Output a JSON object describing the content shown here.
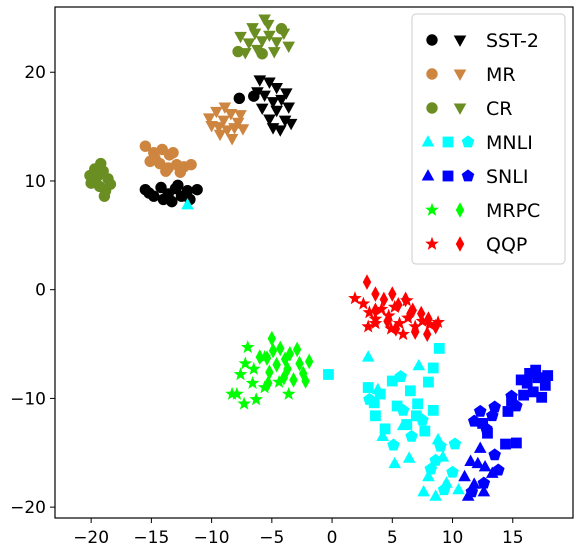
{
  "chart_data": {
    "type": "scatter",
    "title": "",
    "xlabel": "",
    "ylabel": "",
    "xlim": [
      -23,
      20
    ],
    "ylim": [
      -21,
      26
    ],
    "grid": false,
    "legend_position": "top-right",
    "xticks": [
      "−20",
      "−15",
      "−10",
      "−5",
      "0",
      "5",
      "10",
      "15"
    ],
    "xtick_values": [
      -20,
      -15,
      -10,
      -5,
      0,
      5,
      10,
      15
    ],
    "yticks": [
      "−20",
      "−10",
      "0",
      "10",
      "20"
    ],
    "ytick_values": [
      -20,
      -10,
      0,
      10,
      20
    ],
    "legend": [
      {
        "label": "SST-2",
        "color": "#000000",
        "markers": [
          "circle",
          "triangle-down"
        ]
      },
      {
        "label": "MR",
        "color": "#cd853f",
        "markers": [
          "circle",
          "triangle-down"
        ]
      },
      {
        "label": "CR",
        "color": "#6b8e23",
        "markers": [
          "circle",
          "triangle-down"
        ]
      },
      {
        "label": "MNLI",
        "color": "#00ffff",
        "markers": [
          "triangle-up",
          "square",
          "pentagon"
        ]
      },
      {
        "label": "SNLI",
        "color": "#0000ff",
        "markers": [
          "triangle-up",
          "square",
          "pentagon"
        ]
      },
      {
        "label": "MRPC",
        "color": "#00ff00",
        "markers": [
          "star",
          "diamond"
        ]
      },
      {
        "label": "QQP",
        "color": "#ff0000",
        "markers": [
          "star",
          "diamond"
        ]
      }
    ],
    "series": [
      {
        "color": "#000000",
        "marker": "circle",
        "points": [
          [
            -15.5,
            9.2
          ],
          [
            -14.8,
            8.6
          ],
          [
            -14.2,
            9.4
          ],
          [
            -13.6,
            8.8
          ],
          [
            -13,
            9.3
          ],
          [
            -12.5,
            8.6
          ],
          [
            -12,
            9.1
          ],
          [
            -11.2,
            9.2
          ],
          [
            -15.2,
            8.9
          ],
          [
            -14,
            8.3
          ],
          [
            -13.3,
            8.1
          ],
          [
            -12.8,
            9.6
          ],
          [
            -11.8,
            8.3
          ],
          [
            -7.7,
            17.6
          ],
          [
            -6.5,
            17.8
          ]
        ]
      },
      {
        "color": "#000000",
        "marker": "triangle-down",
        "points": [
          [
            -6,
            19.3
          ],
          [
            -5.2,
            19.1
          ],
          [
            -4.6,
            18.6
          ],
          [
            -5.6,
            17.9
          ],
          [
            -4.9,
            17.3
          ],
          [
            -4.2,
            17.5
          ],
          [
            -5.8,
            16.7
          ],
          [
            -4.6,
            16.5
          ],
          [
            -3.6,
            16.8
          ],
          [
            -5.2,
            15.7
          ],
          [
            -3.9,
            15.6
          ],
          [
            -4.9,
            14.9
          ],
          [
            -3.4,
            15.3
          ],
          [
            -6.2,
            18.2
          ],
          [
            -3.8,
            18.1
          ],
          [
            -4.3,
            14.7
          ]
        ]
      },
      {
        "color": "#cd853f",
        "marker": "circle",
        "points": [
          [
            -15.5,
            13.2
          ],
          [
            -14.8,
            12.6
          ],
          [
            -14.1,
            12.9
          ],
          [
            -13.5,
            12.4
          ],
          [
            -15.1,
            11.8
          ],
          [
            -14.3,
            11.6
          ],
          [
            -13.6,
            11.2
          ],
          [
            -12.9,
            11.5
          ],
          [
            -12.3,
            11.3
          ],
          [
            -11.7,
            11.5
          ],
          [
            -14.7,
            12.1
          ],
          [
            -13.2,
            12.6
          ],
          [
            -13.8,
            10.9
          ],
          [
            -12.6,
            10.8
          ]
        ]
      },
      {
        "color": "#cd853f",
        "marker": "triangle-down",
        "points": [
          [
            -10.2,
            15.8
          ],
          [
            -9.6,
            16.4
          ],
          [
            -9,
            15.6
          ],
          [
            -8.4,
            16.2
          ],
          [
            -7.8,
            15.4
          ],
          [
            -9.4,
            15
          ],
          [
            -8.7,
            14.7
          ],
          [
            -8.1,
            14.9
          ],
          [
            -7.4,
            14.8
          ],
          [
            -10,
            15.1
          ],
          [
            -8.9,
            16.8
          ],
          [
            -7.6,
            16.1
          ],
          [
            -8.3,
            13.9
          ],
          [
            -9.3,
            14.3
          ]
        ]
      },
      {
        "color": "#6b8e23",
        "marker": "circle",
        "points": [
          [
            -20,
            9.8
          ],
          [
            -19.5,
            10.4
          ],
          [
            -19,
            10.9
          ],
          [
            -18.6,
            10.2
          ],
          [
            -19.3,
            9.5
          ],
          [
            -18.8,
            9.1
          ],
          [
            -19.7,
            11.1
          ],
          [
            -19.2,
            11.6
          ],
          [
            -18.9,
            8.6
          ],
          [
            -20.1,
            10.5
          ],
          [
            -18.4,
            9.7
          ],
          [
            -7.8,
            21.9
          ],
          [
            -5.8,
            21.7
          ],
          [
            -4.2,
            24
          ]
        ]
      },
      {
        "color": "#6b8e23",
        "marker": "triangle-down",
        "points": [
          [
            -7.6,
            23.3
          ],
          [
            -6.9,
            22.7
          ],
          [
            -6.4,
            23.6
          ],
          [
            -5.8,
            22.9
          ],
          [
            -5.2,
            23.4
          ],
          [
            -4.6,
            22.8
          ],
          [
            -4,
            23.6
          ],
          [
            -6.2,
            22.1
          ],
          [
            -5.3,
            24.4
          ],
          [
            -7.2,
            21.8
          ],
          [
            -4.8,
            21.9
          ],
          [
            -6.6,
            24.1
          ],
          [
            -5.6,
            24.9
          ],
          [
            -3.6,
            22.4
          ]
        ]
      },
      {
        "color": "#00ffff",
        "marker": "triangle-up",
        "points": [
          [
            -12,
            7.8
          ],
          [
            3,
            -6.2
          ],
          [
            7.2,
            -7
          ],
          [
            4.2,
            -13.5
          ],
          [
            6.4,
            -15.5
          ],
          [
            8.8,
            -13.8
          ],
          [
            8,
            -17.2
          ],
          [
            9.5,
            -17.8
          ],
          [
            8.6,
            -19
          ],
          [
            10.5,
            -18.4
          ],
          [
            5.9,
            -12.5
          ],
          [
            3.8,
            -9.2
          ],
          [
            9.2,
            -15.4
          ],
          [
            7.6,
            -18.6
          ],
          [
            5.2,
            -16
          ]
        ]
      },
      {
        "color": "#00ffff",
        "marker": "square",
        "points": [
          [
            -0.3,
            -7.8
          ],
          [
            3,
            -9
          ],
          [
            4,
            -9.6
          ],
          [
            5,
            -8.4
          ],
          [
            6.5,
            -9.3
          ],
          [
            8,
            -8.5
          ],
          [
            7.1,
            -10.5
          ],
          [
            8.4,
            -11.1
          ],
          [
            3.6,
            -11.6
          ],
          [
            5.4,
            -10.7
          ],
          [
            6.2,
            -12.4
          ],
          [
            7.7,
            -13
          ],
          [
            4.4,
            -12.8
          ],
          [
            8.4,
            -7.2
          ],
          [
            8.9,
            -5.4
          ],
          [
            3.5,
            -10.4
          ],
          [
            7,
            -11.6
          ]
        ]
      },
      {
        "color": "#00ffff",
        "marker": "pentagon",
        "points": [
          [
            5.7,
            -8
          ],
          [
            3.1,
            -10.1
          ],
          [
            5.9,
            -11.1
          ],
          [
            6.6,
            -13.5
          ],
          [
            9,
            -14.4
          ],
          [
            10,
            -16.8
          ],
          [
            8.2,
            -16.5
          ],
          [
            9.3,
            -18.4
          ],
          [
            7.5,
            -12
          ],
          [
            5.1,
            -14.3
          ],
          [
            8.6,
            -15.7
          ],
          [
            10.2,
            -14.2
          ]
        ]
      },
      {
        "color": "#0000ff",
        "marker": "triangle-up",
        "points": [
          [
            11.5,
            -15.8
          ],
          [
            12.3,
            -14.6
          ],
          [
            11,
            -17.2
          ],
          [
            11.8,
            -17.9
          ],
          [
            12.6,
            -18.6
          ],
          [
            11.3,
            -19
          ],
          [
            12.7,
            -16.3
          ],
          [
            13.3,
            -16.9
          ],
          [
            12.1,
            -16
          ]
        ]
      },
      {
        "color": "#0000ff",
        "marker": "square",
        "points": [
          [
            15.7,
            -8.3
          ],
          [
            16.4,
            -7.7
          ],
          [
            17.1,
            -8.1
          ],
          [
            17.7,
            -8.8
          ],
          [
            16.7,
            -9.4
          ],
          [
            15.9,
            -9.7
          ],
          [
            17.4,
            -9.9
          ],
          [
            16.2,
            -8.6
          ],
          [
            17.9,
            -7.9
          ],
          [
            14.9,
            -10.2
          ],
          [
            14.6,
            -11.2
          ],
          [
            15.3,
            -14.1
          ],
          [
            14.4,
            -14.2
          ],
          [
            12.9,
            -13.2
          ],
          [
            12.5,
            -12.3
          ],
          [
            16.9,
            -7.4
          ]
        ]
      },
      {
        "color": "#0000ff",
        "marker": "pentagon",
        "points": [
          [
            12.3,
            -11.2
          ],
          [
            13.3,
            -11.6
          ],
          [
            12.8,
            -12.8
          ],
          [
            13.5,
            -10.8
          ],
          [
            11.8,
            -12.1
          ],
          [
            15.3,
            -10.7
          ],
          [
            14.9,
            -9.8
          ],
          [
            13.8,
            -16.6
          ],
          [
            12.6,
            -17.8
          ],
          [
            13.5,
            -15.2
          ],
          [
            11.6,
            -18.6
          ]
        ]
      },
      {
        "color": "#00ff00",
        "marker": "star",
        "points": [
          [
            -7,
            -5.3
          ],
          [
            -7.2,
            -6.8
          ],
          [
            -7.6,
            -7.8
          ],
          [
            -6.6,
            -8.6
          ],
          [
            -7.9,
            -9.6
          ],
          [
            -7.3,
            -10.5
          ],
          [
            -6.3,
            -10.1
          ],
          [
            -8.3,
            -9.6
          ],
          [
            -5.6,
            -9
          ],
          [
            -4.4,
            -8.5
          ],
          [
            -3.6,
            -9.6
          ],
          [
            -6.5,
            -7.3
          ],
          [
            -5.6,
            -6.2
          ]
        ]
      },
      {
        "color": "#00ff00",
        "marker": "diamond",
        "points": [
          [
            -5,
            -4.5
          ],
          [
            -4.3,
            -5.4
          ],
          [
            -3.5,
            -5.9
          ],
          [
            -5.4,
            -6.3
          ],
          [
            -4.6,
            -6.9
          ],
          [
            -3.7,
            -7.3
          ],
          [
            -2.7,
            -6.8
          ],
          [
            -2.4,
            -7.7
          ],
          [
            -3.2,
            -8.3
          ],
          [
            -4,
            -8.1
          ],
          [
            -5.2,
            -7.6
          ],
          [
            -6,
            -6.2
          ],
          [
            -4.9,
            -5.6
          ],
          [
            -3.9,
            -6.4
          ],
          [
            -2.9,
            -5.5
          ],
          [
            -1.9,
            -6.6
          ],
          [
            -2.2,
            -8.4
          ],
          [
            -5.3,
            -8.6
          ]
        ]
      },
      {
        "color": "#ff0000",
        "marker": "star",
        "points": [
          [
            1.9,
            -0.8
          ],
          [
            2.6,
            -1.3
          ],
          [
            3.1,
            -2.1
          ],
          [
            3.6,
            -2.7
          ],
          [
            4.1,
            -1.8
          ],
          [
            4.7,
            -2.4
          ],
          [
            5.2,
            -1.6
          ],
          [
            5.6,
            -3.1
          ],
          [
            6.3,
            -2.6
          ],
          [
            6.9,
            -3.4
          ],
          [
            7.5,
            -2.9
          ],
          [
            8.1,
            -3.2
          ],
          [
            8.8,
            -3
          ],
          [
            3.6,
            -3.1
          ],
          [
            4.9,
            -3.6
          ],
          [
            5.9,
            -4.1
          ],
          [
            3,
            -3.4
          ],
          [
            6.2,
            -1
          ]
        ]
      },
      {
        "color": "#ff0000",
        "marker": "diamond",
        "points": [
          [
            2.9,
            0.7
          ],
          [
            3.6,
            -0.4
          ],
          [
            4.3,
            -0.9
          ],
          [
            5,
            -0.4
          ],
          [
            5.5,
            -1.4
          ],
          [
            6.1,
            -0.9
          ],
          [
            6.7,
            -1.9
          ],
          [
            7.4,
            -2.2
          ],
          [
            8,
            -2.7
          ],
          [
            4.6,
            -2.9
          ],
          [
            5.3,
            -3.6
          ],
          [
            6.9,
            -3.9
          ],
          [
            7.9,
            -4.1
          ],
          [
            3.6,
            -1.9
          ],
          [
            8.6,
            -3.4
          ],
          [
            6.5,
            -2.2
          ]
        ]
      }
    ]
  }
}
